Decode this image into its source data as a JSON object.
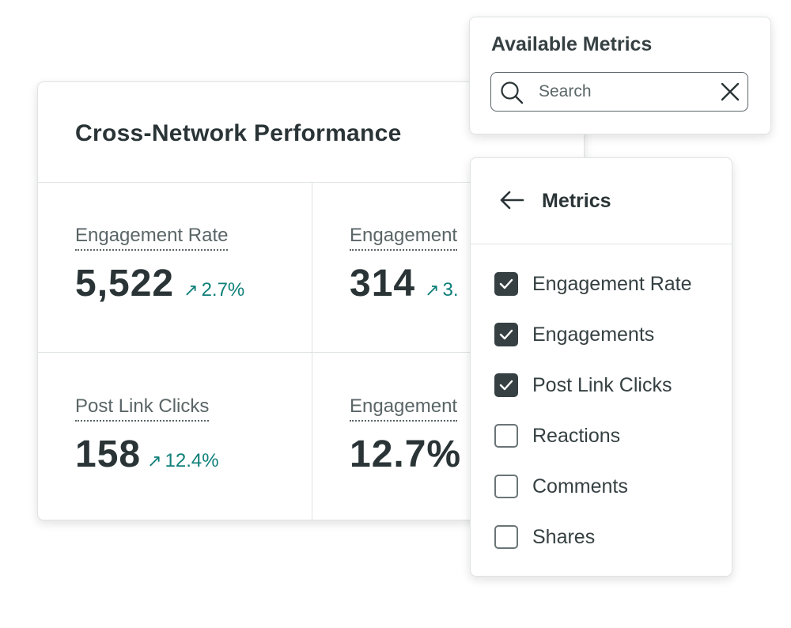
{
  "main": {
    "title": "Cross-Network Performance",
    "cells": [
      {
        "label": "Engagement Rate",
        "value": "5,522",
        "delta": "2.7%"
      },
      {
        "label": "Engagement",
        "value": "314",
        "delta": "3."
      },
      {
        "label": "Post Link Clicks",
        "value": "158",
        "delta": "12.4%"
      },
      {
        "label": "Engagement",
        "value": "12.7%"
      }
    ],
    "colors": {
      "accent": "#0f7f7a",
      "text": "#2a3436"
    }
  },
  "available": {
    "title": "Available Metrics",
    "search_placeholder": "Search",
    "search_value": ""
  },
  "metrics": {
    "title": "Metrics",
    "items": [
      {
        "label": "Engagement Rate",
        "checked": true
      },
      {
        "label": "Engagements",
        "checked": true
      },
      {
        "label": "Post Link Clicks",
        "checked": true
      },
      {
        "label": "Reactions",
        "checked": false
      },
      {
        "label": "Comments",
        "checked": false
      },
      {
        "label": "Shares",
        "checked": false
      }
    ]
  }
}
